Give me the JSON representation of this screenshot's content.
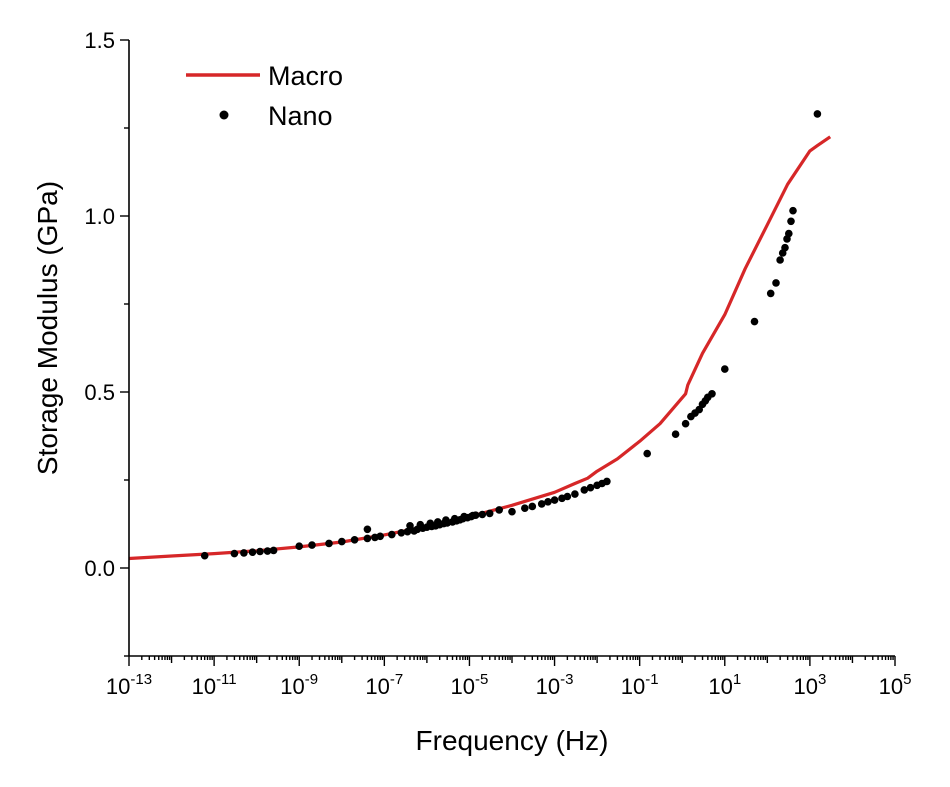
{
  "chart_data": {
    "type": "line",
    "xlabel": "Frequency (Hz)",
    "ylabel": "Storage Modulus (GPa)",
    "xscale": "log",
    "xlim": [
      1e-13,
      100000.0
    ],
    "ylim": [
      -0.25,
      1.5
    ],
    "x_ticks": [
      {
        "base": "10",
        "exp": "-13"
      },
      {
        "base": "10",
        "exp": "-11"
      },
      {
        "base": "10",
        "exp": "-9"
      },
      {
        "base": "10",
        "exp": "-7"
      },
      {
        "base": "10",
        "exp": "-5"
      },
      {
        "base": "10",
        "exp": "-3"
      },
      {
        "base": "10",
        "exp": "-1"
      },
      {
        "base": "10",
        "exp": "1"
      },
      {
        "base": "10",
        "exp": "3"
      },
      {
        "base": "10",
        "exp": "5"
      }
    ],
    "y_ticks": [
      "0.0",
      "0.5",
      "1.0",
      "1.5"
    ],
    "legend_position": "top-left",
    "grid": false,
    "series": [
      {
        "name": "Macro",
        "style": "line",
        "color": "#d62728",
        "points": [
          [
            1e-13,
            0.027
          ],
          [
            1e-12,
            0.034
          ],
          [
            1e-11,
            0.041
          ],
          [
            1e-10,
            0.049
          ],
          [
            1e-09,
            0.06
          ],
          [
            1e-08,
            0.074
          ],
          [
            1e-07,
            0.094
          ],
          [
            1e-06,
            0.118
          ],
          [
            1e-05,
            0.146
          ],
          [
            0.0001,
            0.178
          ],
          [
            0.001,
            0.215
          ],
          [
            0.003,
            0.24
          ],
          [
            0.006,
            0.255
          ],
          [
            0.01,
            0.275
          ],
          [
            0.03,
            0.31
          ],
          [
            0.1,
            0.36
          ],
          [
            0.3,
            0.41
          ],
          [
            0.8,
            0.47
          ],
          [
            1.2,
            0.495
          ],
          [
            1.35,
            0.52
          ],
          [
            3,
            0.61
          ],
          [
            10,
            0.72
          ],
          [
            30,
            0.85
          ],
          [
            100,
            0.975
          ],
          [
            300,
            1.09
          ],
          [
            1000,
            1.185
          ],
          [
            1500,
            1.2
          ],
          [
            3000,
            1.225
          ]
        ]
      },
      {
        "name": "Nano",
        "style": "scatter",
        "color": "#000000",
        "points": [
          [
            6e-12,
            0.035
          ],
          [
            3e-11,
            0.041
          ],
          [
            5e-11,
            0.043
          ],
          [
            8e-11,
            0.045
          ],
          [
            1.2e-10,
            0.047
          ],
          [
            1.8e-10,
            0.048
          ],
          [
            2.5e-10,
            0.05
          ],
          [
            1e-09,
            0.062
          ],
          [
            2e-09,
            0.065
          ],
          [
            5e-09,
            0.07
          ],
          [
            1e-08,
            0.075
          ],
          [
            2e-08,
            0.08
          ],
          [
            4e-08,
            0.084
          ],
          [
            6e-08,
            0.087
          ],
          [
            8e-08,
            0.09
          ],
          [
            1.5e-07,
            0.095
          ],
          [
            2.5e-07,
            0.1
          ],
          [
            3.5e-07,
            0.103
          ],
          [
            4e-08,
            0.11
          ],
          [
            5e-07,
            0.105
          ],
          [
            6e-07,
            0.11
          ],
          [
            8e-07,
            0.113
          ],
          [
            1e-06,
            0.116
          ],
          [
            1.3e-06,
            0.118
          ],
          [
            1.6e-06,
            0.12
          ],
          [
            2e-06,
            0.123
          ],
          [
            2.5e-06,
            0.126
          ],
          [
            3e-06,
            0.128
          ],
          [
            4e-06,
            0.131
          ],
          [
            5e-06,
            0.134
          ],
          [
            6e-06,
            0.137
          ],
          [
            7e-06,
            0.14
          ],
          [
            9e-06,
            0.143
          ],
          [
            1.1e-05,
            0.146
          ],
          [
            1.4e-05,
            0.15
          ],
          [
            4e-07,
            0.12
          ],
          [
            7e-07,
            0.123
          ],
          [
            1.2e-06,
            0.127
          ],
          [
            1.8e-06,
            0.131
          ],
          [
            2.8e-06,
            0.136
          ],
          [
            4.5e-06,
            0.14
          ],
          [
            7.5e-06,
            0.146
          ],
          [
            1.2e-05,
            0.149
          ],
          [
            2e-05,
            0.152
          ],
          [
            3e-05,
            0.155
          ],
          [
            5e-05,
            0.165
          ],
          [
            0.0001,
            0.16
          ],
          [
            0.0002,
            0.17
          ],
          [
            0.0003,
            0.175
          ],
          [
            0.0005,
            0.182
          ],
          [
            0.0007,
            0.188
          ],
          [
            0.001,
            0.193
          ],
          [
            0.0015,
            0.198
          ],
          [
            0.002,
            0.203
          ],
          [
            0.003,
            0.21
          ],
          [
            0.005,
            0.222
          ],
          [
            0.007,
            0.228
          ],
          [
            0.01,
            0.235
          ],
          [
            0.013,
            0.24
          ],
          [
            0.017,
            0.246
          ],
          [
            0.15,
            0.325
          ],
          [
            0.7,
            0.38
          ],
          [
            1.2,
            0.41
          ],
          [
            1.6,
            0.43
          ],
          [
            2.0,
            0.44
          ],
          [
            2.5,
            0.45
          ],
          [
            3.0,
            0.465
          ],
          [
            3.5,
            0.475
          ],
          [
            4.0,
            0.485
          ],
          [
            5.0,
            0.495
          ],
          [
            10,
            0.565
          ],
          [
            50,
            0.7
          ],
          [
            120,
            0.78
          ],
          [
            160,
            0.81
          ],
          [
            200,
            0.875
          ],
          [
            230,
            0.895
          ],
          [
            260,
            0.91
          ],
          [
            290,
            0.935
          ],
          [
            320,
            0.95
          ],
          [
            360,
            0.985
          ],
          [
            400,
            1.015
          ],
          [
            1500,
            1.29
          ]
        ]
      }
    ]
  }
}
